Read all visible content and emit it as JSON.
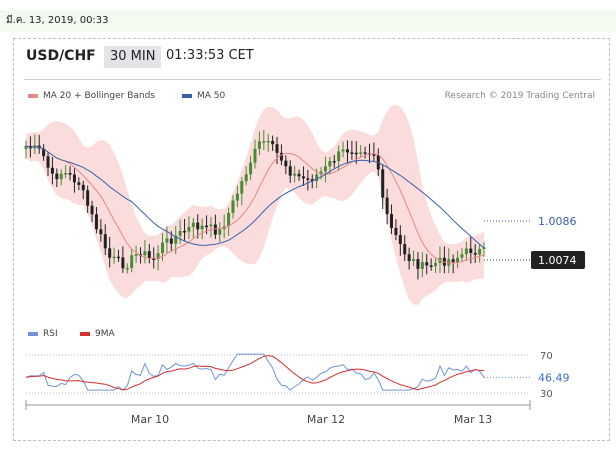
{
  "date_bar": "มี.ค. 13, 2019, 00:33",
  "header": {
    "pair": "USD/CHF",
    "timeframe": "30 MIN",
    "time": "01:33:53 CET"
  },
  "legend": {
    "item1": "MA 20 + Bollinger Bands",
    "item2": "MA 50",
    "copyright": "Research © 2019 Trading Central"
  },
  "rsi_legend": {
    "item1": "RSI",
    "item2": "9MA"
  },
  "colors": {
    "bb_fill": "#fbdcdc",
    "ma20": "#e48888",
    "ma50": "#3c5ea9",
    "bull": "#4b8a35",
    "bear": "#222222",
    "rsi": "#6f93d6",
    "rsi_ma": "#d62f2f",
    "label_dark": "#222222"
  },
  "chart_data": {
    "type": "candlestick",
    "price_chart": {
      "y_labels": [
        {
          "value": 1.0086,
          "text": "1.0086",
          "style": "ma50"
        },
        {
          "value": 1.0074,
          "text": "1.0074",
          "style": "last"
        }
      ],
      "series": [
        "MA 20 + Bollinger Bands",
        "MA 50"
      ]
    },
    "rsi_chart": {
      "levels": [
        70,
        30
      ],
      "last_rsi": 46.49,
      "series": [
        "RSI",
        "9MA"
      ]
    },
    "x_labels": [
      "Mar 10",
      "Mar 12",
      "Mar 13"
    ]
  }
}
